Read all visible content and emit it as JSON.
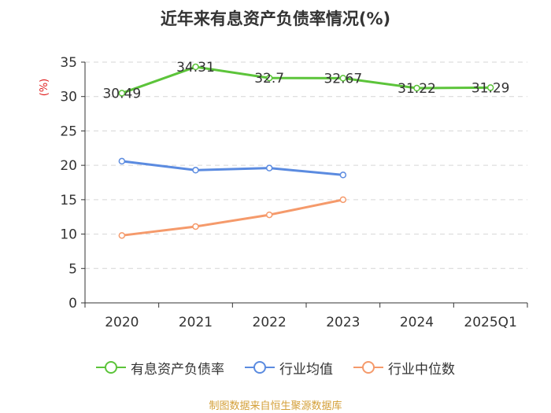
{
  "chart_data": {
    "type": "line",
    "title": "近年来有息资产负债率情况(%)",
    "ylabel": "(%)",
    "xlabel": "",
    "ylim": [
      0,
      35
    ],
    "yticks": [
      0,
      5,
      10,
      15,
      20,
      25,
      30,
      35
    ],
    "grid": true,
    "categories": [
      "2020",
      "2021",
      "2022",
      "2023",
      "2024",
      "2025Q1"
    ],
    "series": [
      {
        "name": "有息资产负债率",
        "color": "#5cc43a",
        "values": [
          30.49,
          34.31,
          32.7,
          32.67,
          31.22,
          31.29
        ],
        "show_labels": true
      },
      {
        "name": "行业均值",
        "color": "#5b8be0",
        "values": [
          20.6,
          19.3,
          19.6,
          18.6,
          null,
          null
        ],
        "show_labels": false
      },
      {
        "name": "行业中位数",
        "color": "#f59a6b",
        "values": [
          9.8,
          11.1,
          12.8,
          15.0,
          null,
          null
        ],
        "show_labels": false
      }
    ],
    "legend_position": "bottom"
  },
  "source": "制图数据来自恒生聚源数据库"
}
